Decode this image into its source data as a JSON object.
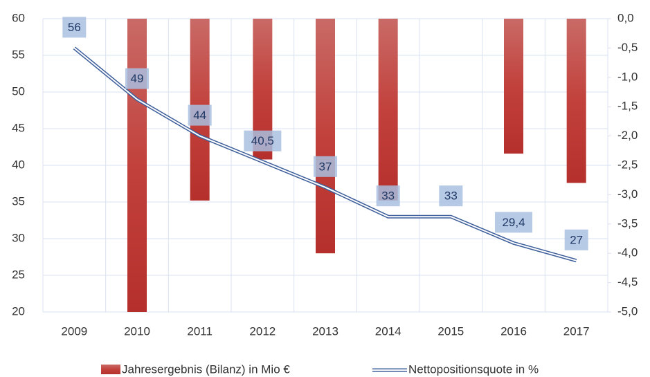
{
  "chart_data": {
    "type": "bar-line",
    "categories": [
      "2009",
      "2010",
      "2011",
      "2012",
      "2013",
      "2014",
      "2015",
      "2016",
      "2017"
    ],
    "series": [
      {
        "name": "Jahresergebnis (Bilanz) in Mio €",
        "type": "bar",
        "axis": "y2",
        "color": "#c0392b",
        "values": [
          null,
          -5.0,
          -3.1,
          -2.4,
          -4.0,
          -3.1,
          null,
          -2.3,
          -2.8
        ]
      },
      {
        "name": "Nettopositionsquote in %",
        "type": "line",
        "color": "#3e5f9b",
        "values": [
          56,
          49,
          44,
          40.5,
          37,
          33,
          33,
          29.4,
          27
        ],
        "value_labels": [
          "56",
          "49",
          "44",
          "40,5",
          "37",
          "33",
          "33",
          "29,4",
          "27"
        ]
      }
    ],
    "ylim": [
      20,
      60
    ],
    "yticks": [
      20,
      25,
      30,
      35,
      40,
      45,
      50,
      55,
      60
    ],
    "y2lim": [
      -5,
      0
    ],
    "y2ticks": [
      {
        "value": -5,
        "label": "-5,0"
      },
      {
        "value": -4.5,
        "label": "-4,5"
      },
      {
        "value": -4,
        "label": "-4,0"
      },
      {
        "value": -3.5,
        "label": "-3,5"
      },
      {
        "value": -3,
        "label": "-3,0"
      },
      {
        "value": -2.5,
        "label": "-2,5"
      },
      {
        "value": -2,
        "label": "-2,0"
      },
      {
        "value": -1.5,
        "label": "-1,5"
      },
      {
        "value": -1,
        "label": "-1,0"
      },
      {
        "value": -0.5,
        "label": "-0,5"
      },
      {
        "value": 0,
        "label": "0,0"
      }
    ],
    "grid": true,
    "legend": "bottom"
  }
}
